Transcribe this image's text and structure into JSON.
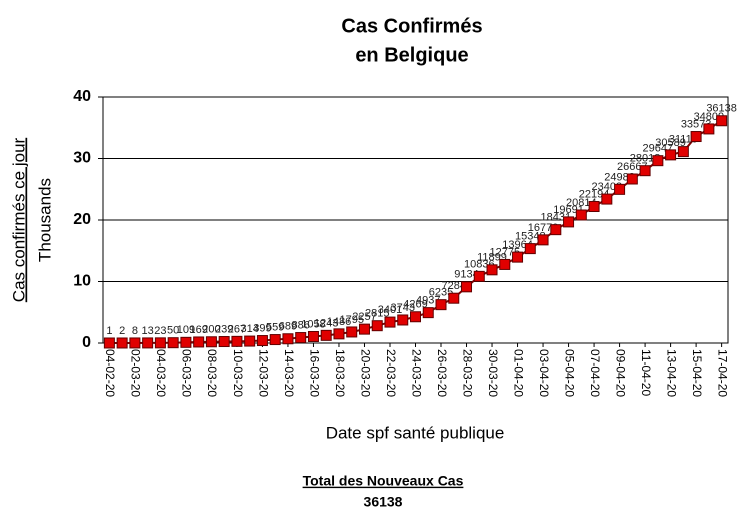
{
  "chart_data": {
    "type": "line",
    "title": [
      "Cas Confirmés",
      "en Belgique"
    ],
    "y_label": "Cas confirmés ce jour",
    "y_unit_label": "Thousands",
    "x_label": "Date spf santé publique",
    "categories": [
      "04-02-20",
      null,
      "02-03-20",
      null,
      "04-03-20",
      null,
      "06-03-20",
      null,
      "08-03-20",
      null,
      "10-03-20",
      null,
      "12-03-20",
      null,
      "14-03-20",
      null,
      "16-03-20",
      null,
      "18-03-20",
      null,
      "20-03-20",
      null,
      "22-03-20",
      null,
      "24-03-20",
      null,
      "26-03-20",
      null,
      "28-03-20",
      null,
      "30-03-20",
      null,
      "01-04-20",
      null,
      "03-04-20",
      null,
      "05-04-20",
      null,
      "07-04-20",
      null,
      "09-04-20",
      null,
      "11-04-20",
      null,
      "13-04-20",
      null,
      "15-04-20",
      null,
      "17-04-20"
    ],
    "series": [
      {
        "color": "#e00000",
        "line_color": "#800000",
        "values": [
          0.001,
          0.002,
          0.008,
          0.013,
          0.023,
          0.05,
          0.109,
          0.169,
          0.2,
          0.239,
          0.267,
          0.314,
          0.399,
          0.559,
          0.689,
          0.886,
          1.058,
          1.243,
          1.486,
          1.795,
          2.257,
          2.815,
          3.401,
          3.743,
          4.269,
          4.937,
          6.235,
          7.284,
          9.134,
          10.836,
          11.899,
          12.775,
          13.964,
          15.348,
          16.77,
          18.431,
          19.691,
          20.814,
          22.194,
          23.403,
          24.983,
          26.667,
          28.018,
          29.647,
          30.589,
          31.119,
          33.573,
          34.809,
          36.138
        ],
        "value_labels": [
          "1",
          "2",
          "8",
          "13",
          "23",
          "50",
          "109",
          "169",
          "200",
          "239",
          "267",
          "314",
          "399",
          "559",
          "689",
          "886",
          "1058",
          "1243",
          "1486",
          "1795",
          "2257",
          "2815",
          "3401",
          "3743",
          "4269",
          "4937",
          "6235",
          "7284",
          "9134",
          "10836",
          "11899",
          "12775",
          "13964",
          "15348",
          "16770",
          "18431",
          "19691",
          "20814",
          "22194",
          "23403",
          "24983",
          "26667",
          "28018",
          "29647",
          "30589",
          "31119",
          "33573",
          "34809",
          "36138"
        ]
      }
    ],
    "ylim": [
      0,
      40
    ],
    "yticks": [
      0,
      10,
      20,
      30,
      40
    ],
    "grid": true,
    "footer": {
      "title": "Total des Nouveaux Cas",
      "value": 36138
    }
  }
}
